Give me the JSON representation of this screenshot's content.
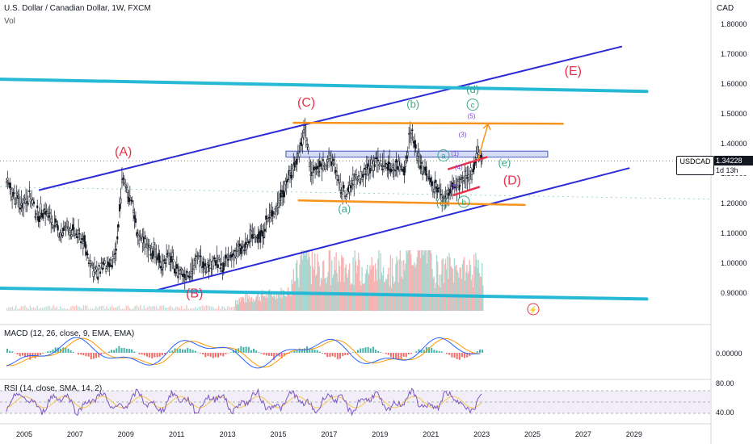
{
  "header": {
    "title": "U.S. Dollar / Canadian Dollar, 1W, FXCM",
    "vol_label": "Vol",
    "currency": "CAD"
  },
  "price_badge": {
    "symbol": "USDCAD",
    "price": "1.34228",
    "time_left": "1d 13h"
  },
  "indicators": {
    "macd_label": "MACD (12, 26, close, 9, EMA, EMA)",
    "rsi_label": "RSI (14, close, SMA, 14, 2)"
  },
  "colors": {
    "background": "#ffffff",
    "candle": "#131722",
    "channel_blue": "#2b2bd8",
    "cyan_line": "#26b9d6",
    "orange_line": "#f7931a",
    "red_wave": "#e8314a",
    "green_wave": "#3ca88a",
    "purple_wave": "#7b3fe4",
    "macd_line": "#2962ff",
    "signal_line": "#ff9800",
    "hist_pos": "#26a69a",
    "hist_neg": "#ef5350",
    "rsi_line": "#7e57c2",
    "price_tag": "#131722",
    "vol_up": "#9bd3cd",
    "vol_down": "#f4a9a7"
  },
  "chart_data": [
    {
      "type": "line",
      "name": "price",
      "x": [
        2003.0,
        2003.3,
        2003.7,
        2004.0,
        2004.3,
        2004.6,
        2004.9,
        2005.2,
        2005.5,
        2005.8,
        2006.1,
        2006.4,
        2006.7,
        2007.0,
        2007.3,
        2007.6,
        2007.9,
        2008.05,
        2008.3,
        2008.6,
        2008.85,
        2009.2,
        2009.5,
        2009.8,
        2010.1,
        2010.4,
        2010.7,
        2011.0,
        2011.3,
        2011.6,
        2011.9,
        2012.2,
        2012.5,
        2012.8,
        2013.1,
        2013.4,
        2013.7,
        2014.0,
        2014.3,
        2014.6,
        2014.9,
        2015.2,
        2015.5,
        2015.8,
        2016.05,
        2016.3,
        2016.6,
        2016.9,
        2017.2,
        2017.4,
        2017.7,
        2018.0,
        2018.3,
        2018.6,
        2018.9,
        2019.2,
        2019.5,
        2019.8,
        2020.0,
        2020.2,
        2020.4,
        2020.7,
        2021.0,
        2021.3,
        2021.5,
        2021.8,
        2022.0,
        2022.3,
        2022.6,
        2022.85,
        2023.0
      ],
      "values": [
        1.41,
        1.35,
        1.31,
        1.38,
        1.27,
        1.22,
        1.2,
        1.23,
        1.16,
        1.18,
        1.14,
        1.1,
        1.12,
        1.1,
        1.08,
        1.0,
        0.96,
        1.0,
        0.98,
        1.02,
        1.28,
        1.22,
        1.08,
        1.06,
        1.04,
        1.0,
        1.02,
        0.98,
        0.96,
        0.98,
        1.02,
        0.99,
        1.01,
        0.99,
        1.02,
        1.04,
        1.05,
        1.1,
        1.09,
        1.15,
        1.18,
        1.25,
        1.3,
        1.37,
        1.45,
        1.3,
        1.32,
        1.34,
        1.34,
        1.25,
        1.23,
        1.28,
        1.29,
        1.33,
        1.34,
        1.33,
        1.32,
        1.33,
        1.32,
        1.45,
        1.38,
        1.32,
        1.27,
        1.25,
        1.21,
        1.25,
        1.26,
        1.27,
        1.3,
        1.38,
        1.34
      ],
      "y_axis": {
        "range": [
          0.83,
          1.84
        ],
        "ticks": [
          "1.80000",
          "1.70000",
          "1.60000",
          "1.50000",
          "1.40000",
          "1.30000",
          "1.20000",
          "1.10000",
          "1.00000",
          "0.90000"
        ],
        "unit": "CAD"
      },
      "x_axis": {
        "ticks": [
          "2005",
          "2007",
          "2009",
          "2011",
          "2013",
          "2015",
          "2017",
          "2019",
          "2021",
          "2023",
          "2025",
          "2027",
          "2029"
        ]
      },
      "annotations": [
        {
          "text": "(A)",
          "x": 2008.9,
          "y": 1.36,
          "color": "red"
        },
        {
          "text": "(B)",
          "x": 2011.7,
          "y": 0.885,
          "color": "red"
        },
        {
          "text": "(C)",
          "x": 2016.1,
          "y": 1.525,
          "color": "red"
        },
        {
          "text": "(D)",
          "x": 2024.2,
          "y": 1.264,
          "color": "red"
        },
        {
          "text": "(E)",
          "x": 2026.6,
          "y": 1.63,
          "color": "red"
        },
        {
          "text": "(a)",
          "x": 2017.6,
          "y": 1.17,
          "color": "green"
        },
        {
          "text": "(b)",
          "x": 2020.3,
          "y": 1.52,
          "color": "green"
        },
        {
          "text": "(c)",
          "x": 2021.45,
          "y": 1.19,
          "color": "green"
        },
        {
          "text": "(d)",
          "x": 2022.65,
          "y": 1.57,
          "color": "green"
        },
        {
          "text": "(e)",
          "x": 2023.9,
          "y": 1.325,
          "color": "green"
        },
        {
          "text": "a",
          "x": 2021.5,
          "y": 1.35,
          "color": "green",
          "circled": true
        },
        {
          "text": "b",
          "x": 2022.3,
          "y": 1.195,
          "color": "green",
          "circled": true
        },
        {
          "text": "c",
          "x": 2022.65,
          "y": 1.52,
          "color": "green",
          "circled": true
        },
        {
          "text": "(1)",
          "x": 2021.95,
          "y": 1.36,
          "color": "purple"
        },
        {
          "text": "(2)",
          "x": 2021.9,
          "y": 1.248,
          "color": "purple"
        },
        {
          "text": "(3)",
          "x": 2022.25,
          "y": 1.423,
          "color": "purple"
        },
        {
          "text": "(4)",
          "x": 2022.1,
          "y": 1.313,
          "color": "purple"
        },
        {
          "text": "(5)",
          "x": 2022.6,
          "y": 1.485,
          "color": "purple"
        }
      ],
      "trendlines": [
        {
          "name": "channel-upper",
          "from": [
            2005.6,
            1.245
          ],
          "to": [
            2028.5,
            1.725
          ],
          "color": "blue"
        },
        {
          "name": "channel-lower",
          "from": [
            2010.0,
            0.905
          ],
          "to": [
            2028.8,
            1.318
          ],
          "color": "blue"
        },
        {
          "name": "cyan-upper",
          "from": [
            2001.4,
            1.62
          ],
          "to": [
            2029.5,
            1.575
          ],
          "color": "cyan"
        },
        {
          "name": "cyan-lower",
          "from": [
            2001.4,
            0.92
          ],
          "to": [
            2029.5,
            0.88
          ],
          "color": "cyan"
        },
        {
          "name": "orange-top",
          "from": [
            2015.6,
            1.47
          ],
          "to": [
            2026.2,
            1.467
          ],
          "color": "orange"
        },
        {
          "name": "orange-bottom",
          "from": [
            2015.8,
            1.21
          ],
          "to": [
            2024.7,
            1.195
          ],
          "color": "orange"
        },
        {
          "name": "red-upper",
          "from": [
            2021.7,
            1.315
          ],
          "to": [
            2023.2,
            1.355
          ],
          "color": "red"
        },
        {
          "name": "red-lower",
          "from": [
            2021.9,
            1.228
          ],
          "to": [
            2022.9,
            1.255
          ],
          "color": "red"
        }
      ]
    },
    {
      "type": "line",
      "name": "MACD",
      "y_axis": {
        "ticks": [
          "0.00000"
        ]
      },
      "series": [
        {
          "name": "MACD"
        },
        {
          "name": "Signal"
        }
      ]
    },
    {
      "type": "line",
      "name": "RSI",
      "y_axis": {
        "ticks": [
          "80.00",
          "40.00"
        ]
      },
      "bands": [
        70,
        50,
        30
      ]
    }
  ]
}
